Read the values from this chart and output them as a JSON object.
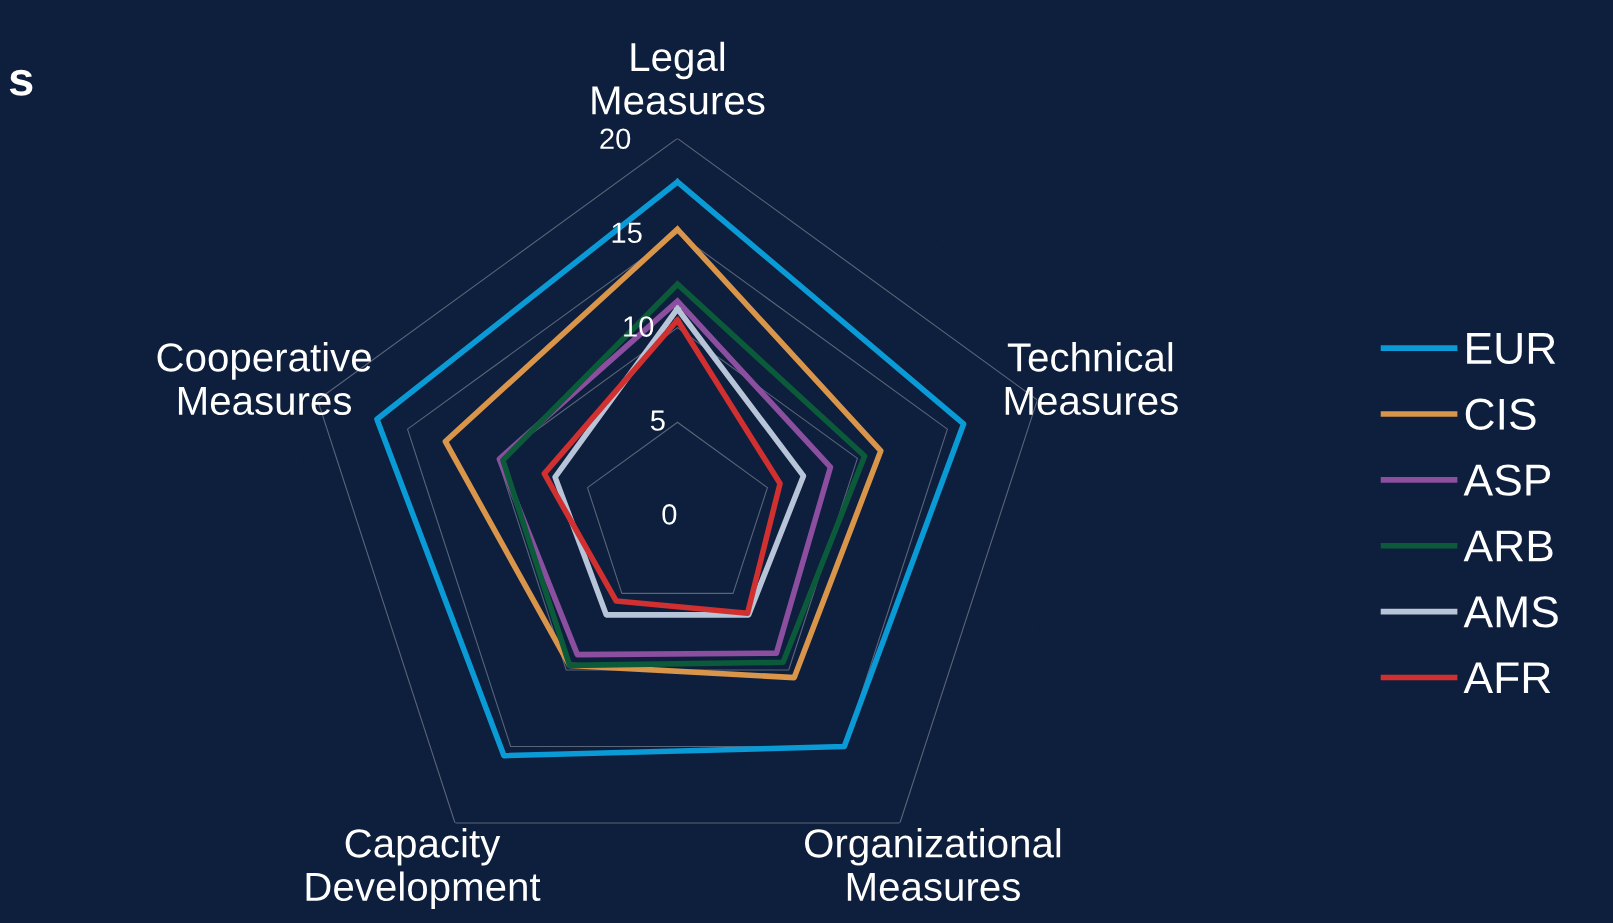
{
  "chart_data": {
    "type": "radar",
    "title": "s",
    "categories": [
      "Legal\nMeasures",
      "Technical\nMeasures",
      "Organizational\nMeasures",
      "Capacity\nDevelopment",
      "Cooperative\nMeasures"
    ],
    "ylim": [
      0,
      20
    ],
    "yticks": [
      0,
      5,
      10,
      15,
      20
    ],
    "grid": true,
    "legend": "right",
    "marker": "none",
    "line_style": "solid",
    "series": [
      {
        "name": "EUR",
        "color": "#0a9ad6",
        "values": [
          17.7,
          15.9,
          15.0,
          15.6,
          16.7
        ]
      },
      {
        "name": "CIS",
        "color": "#d9954a",
        "values": [
          15.2,
          11.3,
          10.5,
          9.7,
          12.9
        ]
      },
      {
        "name": "ASP",
        "color": "#8c4fa0",
        "values": [
          11.4,
          8.5,
          8.9,
          9.0,
          9.9
        ]
      },
      {
        "name": "ARB",
        "color": "#0b5a3a",
        "values": [
          12.3,
          10.4,
          9.5,
          9.7,
          9.7
        ]
      },
      {
        "name": "AMS",
        "color": "#b8c4d8",
        "values": [
          11.0,
          7.0,
          6.4,
          6.4,
          6.8
        ]
      },
      {
        "name": "AFR",
        "color": "#d03030",
        "values": [
          10.4,
          5.7,
          6.3,
          5.5,
          7.4
        ]
      }
    ]
  }
}
